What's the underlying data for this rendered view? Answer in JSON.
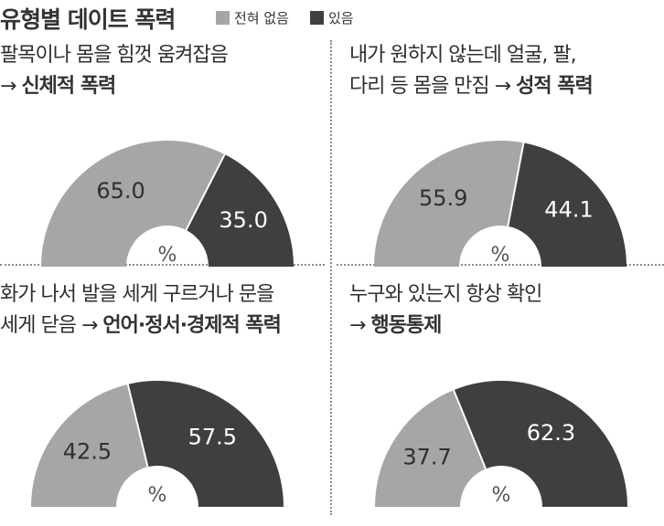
{
  "title": "유형별 데이트 폭력",
  "legend": {
    "none": "전혀 없음",
    "yes": "있음"
  },
  "colors": {
    "none": "#a6a6a6",
    "yes": "#3f3f3f",
    "center": "#ffffff",
    "text_light": "#2f2f2f",
    "text_dark": "#ffffff",
    "percent": "#555555"
  },
  "panels": [
    {
      "line1": "팔목이나 몸을 힘껏 움켜잡음",
      "line2_prefix": "→ ",
      "line2_emph": "신체적 폭력"
    },
    {
      "line1": "내가 원하지 않는데 얼굴, 팔,",
      "line2_prefix": "다리 등 몸을 만짐 → ",
      "line2_emph": "성적  폭력"
    },
    {
      "line1": "화가 나서 발을 세게 구르거나 문을",
      "line2_prefix": "세게 닫음 → ",
      "line2_emph": "언어·정서·경제적 폭력"
    },
    {
      "line1": "누구와 있는지 항상 확인",
      "line2_prefix": "→ ",
      "line2_emph": "행동통제"
    }
  ],
  "chart_data": [
    {
      "type": "pie",
      "title": "팔목이나 몸을 힘껏 움켜잡음 → 신체적 폭력",
      "labels": [
        "전혀 없음",
        "있음"
      ],
      "values": [
        65.0,
        35.0
      ],
      "unit": "%",
      "value_labels": [
        "65.0",
        "35.0"
      ]
    },
    {
      "type": "pie",
      "title": "내가 원하지 않는데 얼굴, 팔, 다리 등 몸을 만짐 → 성적 폭력",
      "labels": [
        "전혀 없음",
        "있음"
      ],
      "values": [
        55.9,
        44.1
      ],
      "unit": "%",
      "value_labels": [
        "55.9",
        "44.1"
      ]
    },
    {
      "type": "pie",
      "title": "화가 나서 발을 세게 구르거나 문을 세게 닫음 → 언어·정서·경제적 폭력",
      "labels": [
        "전혀 없음",
        "있음"
      ],
      "values": [
        42.5,
        57.5
      ],
      "unit": "%",
      "value_labels": [
        "42.5",
        "57.5"
      ]
    },
    {
      "type": "pie",
      "title": "누구와 있는지 항상 확인 → 행동통제",
      "labels": [
        "전혀 없음",
        "있음"
      ],
      "values": [
        37.7,
        62.3
      ],
      "unit": "%",
      "value_labels": [
        "37.7",
        "62.3"
      ]
    }
  ]
}
